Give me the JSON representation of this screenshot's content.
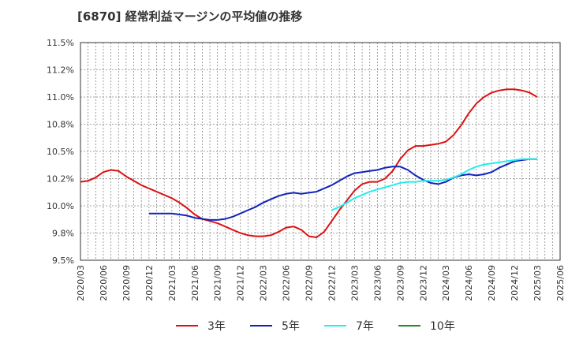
{
  "chart_data": {
    "type": "line",
    "title": "[6870]  経常利益マージンの平均値の推移",
    "xlabel": "",
    "ylabel": "",
    "ylim": [
      9.5,
      11.5
    ],
    "yticks": [
      "9.5%",
      "9.8%",
      "10.0%",
      "10.2%",
      "10.5%",
      "10.8%",
      "11.0%",
      "11.2%",
      "11.5%"
    ],
    "xticks": [
      "2020/03",
      "2020/06",
      "2020/09",
      "2020/12",
      "2021/03",
      "2021/06",
      "2021/09",
      "2021/12",
      "2022/03",
      "2022/06",
      "2022/09",
      "2022/12",
      "2023/03",
      "2023/06",
      "2023/09",
      "2023/12",
      "2024/03",
      "2024/06",
      "2024/09",
      "2024/12",
      "2025/03",
      "2025/06"
    ],
    "grid": true,
    "legend_position": "bottom",
    "series": [
      {
        "name": "3年",
        "color": "#dd1111",
        "x": [
          "2020/03",
          "2020/04",
          "2020/05",
          "2020/06",
          "2020/07",
          "2020/08",
          "2020/09",
          "2020/10",
          "2020/11",
          "2020/12",
          "2021/01",
          "2021/02",
          "2021/03",
          "2021/04",
          "2021/05",
          "2021/06",
          "2021/07",
          "2021/08",
          "2021/09",
          "2021/10",
          "2021/11",
          "2021/12",
          "2022/01",
          "2022/02",
          "2022/03",
          "2022/04",
          "2022/05",
          "2022/06",
          "2022/07",
          "2022/08",
          "2022/09",
          "2022/10",
          "2022/11",
          "2022/12",
          "2023/01",
          "2023/02",
          "2023/03",
          "2023/04",
          "2023/05",
          "2023/06",
          "2023/07",
          "2023/08",
          "2023/09",
          "2023/10",
          "2023/11",
          "2023/12",
          "2024/01",
          "2024/02",
          "2024/03",
          "2024/04",
          "2024/05",
          "2024/06",
          "2024/07",
          "2024/08",
          "2024/09",
          "2024/10",
          "2024/11",
          "2024/12",
          "2025/01",
          "2025/02",
          "2025/03"
        ],
        "values": [
          10.22,
          10.23,
          10.26,
          10.31,
          10.33,
          10.32,
          10.27,
          10.23,
          10.19,
          10.16,
          10.13,
          10.1,
          10.07,
          10.03,
          9.98,
          9.92,
          9.88,
          9.86,
          9.84,
          9.81,
          9.78,
          9.75,
          9.73,
          9.72,
          9.72,
          9.73,
          9.76,
          9.8,
          9.81,
          9.78,
          9.72,
          9.71,
          9.76,
          9.86,
          9.96,
          10.05,
          10.14,
          10.2,
          10.22,
          10.22,
          10.25,
          10.32,
          10.43,
          10.51,
          10.55,
          10.55,
          10.56,
          10.57,
          10.59,
          10.65,
          10.74,
          10.85,
          10.94,
          11.0,
          11.04,
          11.06,
          11.07,
          11.07,
          11.06,
          11.04,
          11.0
        ]
      },
      {
        "name": "5年",
        "color": "#1122bb",
        "x": [
          "2020/12",
          "2021/01",
          "2021/02",
          "2021/03",
          "2021/04",
          "2021/05",
          "2021/06",
          "2021/07",
          "2021/08",
          "2021/09",
          "2021/10",
          "2021/11",
          "2021/12",
          "2022/01",
          "2022/02",
          "2022/03",
          "2022/04",
          "2022/05",
          "2022/06",
          "2022/07",
          "2022/08",
          "2022/09",
          "2022/10",
          "2022/11",
          "2022/12",
          "2023/01",
          "2023/02",
          "2023/03",
          "2023/04",
          "2023/05",
          "2023/06",
          "2023/07",
          "2023/08",
          "2023/09",
          "2023/10",
          "2023/11",
          "2023/12",
          "2024/01",
          "2024/02",
          "2024/03",
          "2024/04",
          "2024/05",
          "2024/06",
          "2024/07",
          "2024/08",
          "2024/09",
          "2024/10",
          "2024/11",
          "2024/12",
          "2025/01",
          "2025/02",
          "2025/03"
        ],
        "values": [
          9.93,
          9.93,
          9.93,
          9.93,
          9.92,
          9.91,
          9.89,
          9.88,
          9.87,
          9.87,
          9.88,
          9.9,
          9.93,
          9.96,
          9.99,
          10.03,
          10.06,
          10.09,
          10.11,
          10.12,
          10.11,
          10.12,
          10.13,
          10.16,
          10.19,
          10.23,
          10.27,
          10.3,
          10.31,
          10.32,
          10.33,
          10.35,
          10.36,
          10.36,
          10.33,
          10.28,
          10.24,
          10.21,
          10.2,
          10.22,
          10.26,
          10.28,
          10.29,
          10.28,
          10.29,
          10.31,
          10.35,
          10.38,
          10.41,
          10.42,
          10.43,
          10.43
        ]
      },
      {
        "name": "7年",
        "color": "#22eeee",
        "x": [
          "2022/12",
          "2023/01",
          "2023/02",
          "2023/03",
          "2023/04",
          "2023/05",
          "2023/06",
          "2023/07",
          "2023/08",
          "2023/09",
          "2023/10",
          "2023/11",
          "2023/12",
          "2024/01",
          "2024/02",
          "2024/03",
          "2024/04",
          "2024/05",
          "2024/06",
          "2024/07",
          "2024/08",
          "2024/09",
          "2024/10",
          "2024/11",
          "2024/12",
          "2025/01",
          "2025/02",
          "2025/03"
        ],
        "values": [
          9.96,
          9.99,
          10.03,
          10.07,
          10.1,
          10.13,
          10.15,
          10.17,
          10.19,
          10.21,
          10.22,
          10.22,
          10.23,
          10.23,
          10.23,
          10.24,
          10.26,
          10.29,
          10.33,
          10.36,
          10.38,
          10.39,
          10.4,
          10.41,
          10.42,
          10.43,
          10.43,
          10.43
        ]
      },
      {
        "name": "10年",
        "color": "#228822",
        "x": [],
        "values": []
      }
    ]
  }
}
